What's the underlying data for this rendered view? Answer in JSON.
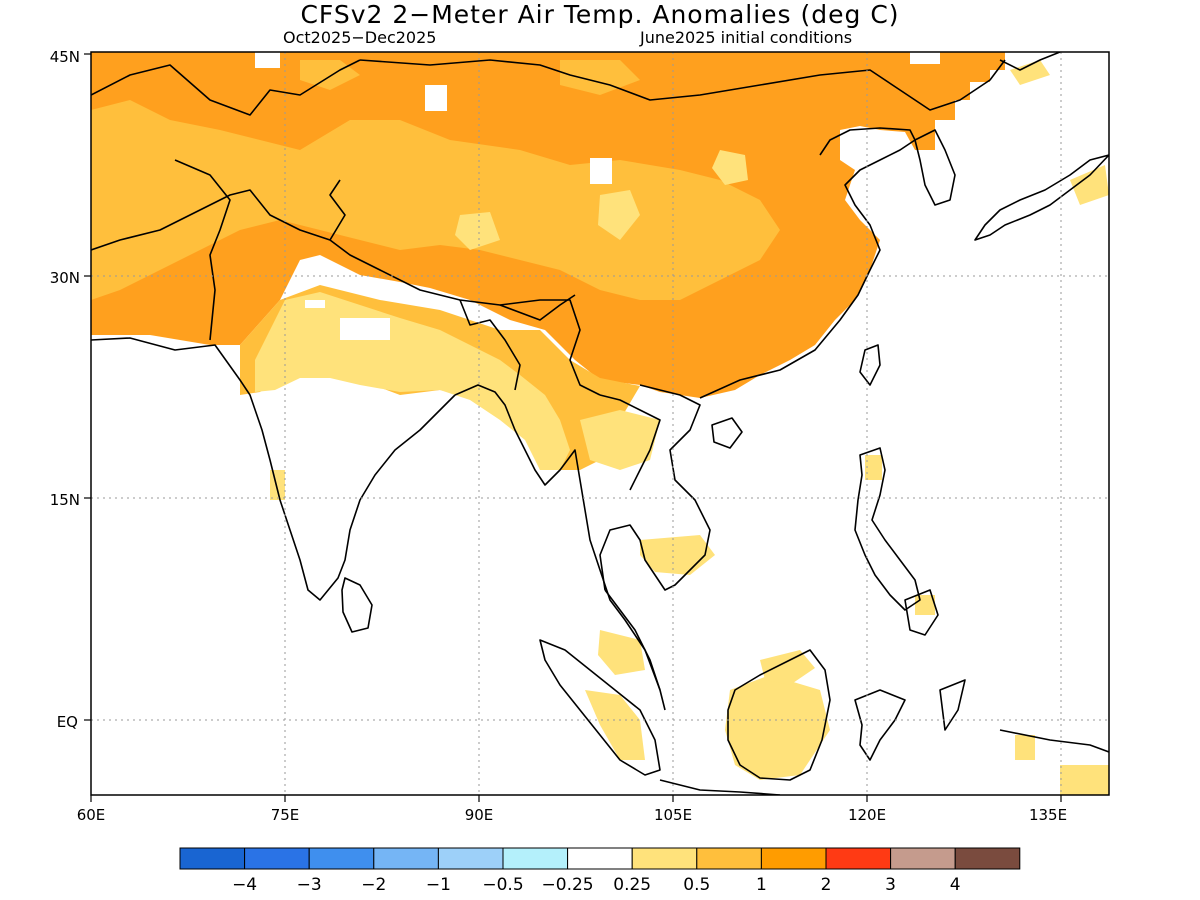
{
  "title": "CFSv2 2−Meter Air Temp. Anomalies (deg C)",
  "period": "Oct2025−Dec2025",
  "init": "June2025 initial conditions",
  "axes": {
    "lon_labels": [
      "60E",
      "75E",
      "90E",
      "105E",
      "120E",
      "135E"
    ],
    "lat_labels": [
      "45N",
      "30N",
      "15N",
      "EQ"
    ]
  },
  "colorbar": {
    "colors": [
      "#1965d2",
      "#2a73e6",
      "#3f8fee",
      "#75b5f5",
      "#9dd0f9",
      "#b4f0fb",
      "#ffffff",
      "#ffe27b",
      "#ffbf3c",
      "#ff9c00",
      "#ff3a14",
      "#c59b8d",
      "#7a4b3e"
    ],
    "labels": [
      "−4",
      "−3",
      "−2",
      "−1",
      "−0.5",
      "−0.25",
      "0.25",
      "0.5",
      "1",
      "2",
      "3",
      "4"
    ]
  },
  "map_colors": {
    "strong": "#ffa01e",
    "moderate": "#ffbf3c",
    "weak": "#ffe27b",
    "none": "#ffffff",
    "coast": "#000000",
    "grid": "#9a9a9a"
  }
}
